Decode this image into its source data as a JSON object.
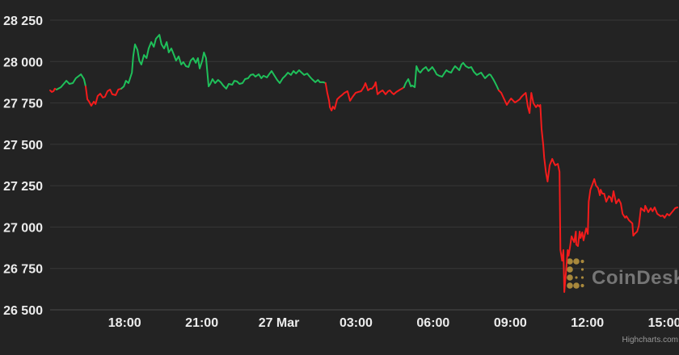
{
  "chart": {
    "watermark": {
      "brand": "CoinDesk"
    },
    "credit": {
      "text": "Highcharts.com"
    }
  },
  "chart_data": {
    "type": "line",
    "x_unit": "minutes",
    "xlim": [
      0,
      1464
    ],
    "ylim": [
      26500,
      28250
    ],
    "grid": "horizontal",
    "legend": "none",
    "up_color": "#1fc05a",
    "down_color": "#f31c1c",
    "x_ticks": [
      {
        "pos": 174,
        "label": "18:00"
      },
      {
        "pos": 354,
        "label": "21:00"
      },
      {
        "pos": 534,
        "label": "27 Mar"
      },
      {
        "pos": 714,
        "label": "03:00"
      },
      {
        "pos": 894,
        "label": "06:00"
      },
      {
        "pos": 1074,
        "label": "09:00"
      },
      {
        "pos": 1254,
        "label": "12:00"
      },
      {
        "pos": 1434,
        "label": "15:00"
      }
    ],
    "y_ticks": [
      {
        "value": 28250,
        "label": "28 250"
      },
      {
        "value": 28000,
        "label": "28 000"
      },
      {
        "value": 27750,
        "label": "27 750"
      },
      {
        "value": 27500,
        "label": "27 500"
      },
      {
        "value": 27250,
        "label": "27 250"
      },
      {
        "value": 27000,
        "label": "27 000"
      },
      {
        "value": 26750,
        "label": "26 750"
      },
      {
        "value": 26500,
        "label": "26 500"
      }
    ],
    "segments": [
      {
        "trend": "down",
        "points": [
          [
            0,
            27826
          ],
          [
            4,
            27816
          ],
          [
            8,
            27821
          ],
          [
            11,
            27836
          ],
          [
            15,
            27831
          ]
        ]
      },
      {
        "trend": "up",
        "points": [
          [
            15,
            27831
          ],
          [
            25,
            27845
          ],
          [
            38,
            27884
          ],
          [
            45,
            27865
          ],
          [
            53,
            27870
          ],
          [
            60,
            27899
          ],
          [
            72,
            27923
          ],
          [
            79,
            27894
          ],
          [
            83,
            27850
          ]
        ]
      },
      {
        "trend": "down",
        "points": [
          [
            83,
            27850
          ],
          [
            87,
            27772
          ],
          [
            91,
            27758
          ],
          [
            96,
            27733
          ],
          [
            102,
            27758
          ],
          [
            106,
            27743
          ],
          [
            111,
            27792
          ],
          [
            117,
            27806
          ],
          [
            123,
            27782
          ],
          [
            128,
            27787
          ],
          [
            134,
            27821
          ],
          [
            140,
            27831
          ],
          [
            145,
            27802
          ],
          [
            153,
            27797
          ],
          [
            159,
            27831
          ],
          [
            166,
            27836
          ]
        ]
      },
      {
        "trend": "up",
        "points": [
          [
            166,
            27836
          ],
          [
            172,
            27850
          ],
          [
            177,
            27884
          ],
          [
            183,
            27870
          ],
          [
            191,
            27933
          ],
          [
            194,
            28031
          ],
          [
            198,
            28104
          ],
          [
            204,
            28070
          ],
          [
            208,
            28006
          ],
          [
            213,
            27982
          ],
          [
            219,
            28040
          ],
          [
            225,
            28021
          ],
          [
            230,
            28079
          ],
          [
            236,
            28118
          ],
          [
            242,
            28089
          ],
          [
            247,
            28138
          ],
          [
            255,
            28162
          ],
          [
            260,
            28104
          ],
          [
            266,
            28079
          ],
          [
            272,
            28118
          ],
          [
            277,
            28055
          ],
          [
            283,
            28079
          ],
          [
            289,
            28040
          ],
          [
            294,
            28006
          ],
          [
            300,
            28031
          ],
          [
            306,
            27982
          ],
          [
            311,
            27997
          ],
          [
            317,
            27972
          ],
          [
            323,
            27967
          ],
          [
            328,
            28006
          ],
          [
            334,
            28021
          ],
          [
            340,
            27992
          ],
          [
            345,
            28021
          ],
          [
            349,
            27958
          ],
          [
            355,
            28006
          ],
          [
            359,
            28055
          ],
          [
            364,
            28021
          ],
          [
            370,
            27850
          ],
          [
            374,
            27865
          ],
          [
            379,
            27894
          ],
          [
            385,
            27870
          ],
          [
            392,
            27889
          ],
          [
            398,
            27875
          ],
          [
            404,
            27855
          ],
          [
            411,
            27836
          ],
          [
            417,
            27865
          ],
          [
            425,
            27860
          ],
          [
            430,
            27884
          ],
          [
            436,
            27880
          ],
          [
            442,
            27865
          ],
          [
            449,
            27870
          ],
          [
            455,
            27894
          ],
          [
            462,
            27899
          ],
          [
            468,
            27919
          ],
          [
            474,
            27923
          ],
          [
            479,
            27909
          ],
          [
            487,
            27923
          ],
          [
            493,
            27899
          ],
          [
            498,
            27914
          ],
          [
            506,
            27904
          ],
          [
            511,
            27923
          ],
          [
            517,
            27943
          ],
          [
            525,
            27909
          ],
          [
            530,
            27889
          ],
          [
            536,
            27870
          ],
          [
            543,
            27899
          ],
          [
            549,
            27914
          ],
          [
            555,
            27933
          ],
          [
            562,
            27919
          ],
          [
            568,
            27943
          ],
          [
            574,
            27928
          ],
          [
            581,
            27948
          ],
          [
            587,
            27933
          ],
          [
            593,
            27919
          ],
          [
            600,
            27928
          ],
          [
            606,
            27909
          ],
          [
            611,
            27894
          ],
          [
            619,
            27875
          ],
          [
            625,
            27889
          ],
          [
            630,
            27875
          ],
          [
            638,
            27875
          ],
          [
            643,
            27870
          ]
        ]
      },
      {
        "trend": "down",
        "points": [
          [
            643,
            27870
          ],
          [
            647,
            27811
          ],
          [
            651,
            27763
          ],
          [
            653,
            27724
          ],
          [
            657,
            27704
          ],
          [
            660,
            27728
          ],
          [
            664,
            27714
          ],
          [
            670,
            27772
          ],
          [
            676,
            27787
          ],
          [
            681,
            27797
          ],
          [
            687,
            27811
          ],
          [
            694,
            27821
          ],
          [
            700,
            27763
          ],
          [
            706,
            27787
          ],
          [
            713,
            27811
          ],
          [
            719,
            27816
          ],
          [
            726,
            27821
          ],
          [
            732,
            27845
          ],
          [
            736,
            27870
          ],
          [
            742,
            27826
          ],
          [
            747,
            27836
          ],
          [
            751,
            27836
          ],
          [
            757,
            27855
          ],
          [
            760,
            27875
          ],
          [
            764,
            27802
          ],
          [
            770,
            27816
          ],
          [
            776,
            27826
          ],
          [
            783,
            27802
          ],
          [
            789,
            27821
          ],
          [
            793,
            27826
          ],
          [
            798,
            27811
          ],
          [
            802,
            27802
          ],
          [
            808,
            27816
          ],
          [
            811,
            27821
          ],
          [
            817,
            27831
          ],
          [
            821,
            27836
          ],
          [
            826,
            27845
          ]
        ]
      },
      {
        "trend": "up",
        "points": [
          [
            826,
            27845
          ],
          [
            830,
            27870
          ],
          [
            836,
            27894
          ],
          [
            842,
            27850
          ],
          [
            845,
            27855
          ],
          [
            851,
            27845
          ],
          [
            855,
            27972
          ],
          [
            860,
            27943
          ],
          [
            864,
            27933
          ],
          [
            870,
            27953
          ],
          [
            877,
            27967
          ],
          [
            883,
            27943
          ],
          [
            889,
            27958
          ],
          [
            892,
            27967
          ],
          [
            898,
            27943
          ],
          [
            902,
            27923
          ],
          [
            908,
            27914
          ],
          [
            915,
            27909
          ],
          [
            921,
            27933
          ],
          [
            925,
            27948
          ],
          [
            930,
            27938
          ],
          [
            936,
            27933
          ],
          [
            940,
            27953
          ],
          [
            945,
            27972
          ],
          [
            951,
            27958
          ],
          [
            955,
            27948
          ],
          [
            960,
            27982
          ],
          [
            964,
            27992
          ],
          [
            970,
            27972
          ],
          [
            977,
            27962
          ],
          [
            983,
            27967
          ],
          [
            989,
            27938
          ],
          [
            996,
            27919
          ],
          [
            1002,
            27928
          ],
          [
            1006,
            27933
          ],
          [
            1011,
            27914
          ],
          [
            1015,
            27899
          ],
          [
            1021,
            27914
          ],
          [
            1025,
            27923
          ],
          [
            1028,
            27919
          ],
          [
            1034,
            27894
          ],
          [
            1038,
            27875
          ],
          [
            1043,
            27850
          ],
          [
            1047,
            27826
          ]
        ]
      },
      {
        "trend": "down",
        "points": [
          [
            1047,
            27826
          ],
          [
            1053,
            27811
          ],
          [
            1059,
            27777
          ],
          [
            1066,
            27738
          ],
          [
            1072,
            27763
          ],
          [
            1076,
            27777
          ],
          [
            1081,
            27763
          ],
          [
            1085,
            27753
          ],
          [
            1091,
            27763
          ],
          [
            1096,
            27772
          ],
          [
            1100,
            27787
          ],
          [
            1104,
            27797
          ],
          [
            1110,
            27811
          ],
          [
            1115,
            27728
          ],
          [
            1119,
            27689
          ],
          [
            1123,
            27811
          ],
          [
            1128,
            27748
          ],
          [
            1134,
            27724
          ],
          [
            1138,
            27738
          ],
          [
            1142,
            27728
          ],
          [
            1144,
            27738
          ],
          [
            1147,
            27592
          ],
          [
            1151,
            27494
          ],
          [
            1153,
            27421
          ],
          [
            1157,
            27334
          ],
          [
            1161,
            27275
          ],
          [
            1166,
            27373
          ],
          [
            1172,
            27412
          ],
          [
            1176,
            27387
          ],
          [
            1179,
            27373
          ],
          [
            1185,
            27382
          ],
          [
            1189,
            27334
          ],
          [
            1191,
            26861
          ],
          [
            1195,
            26797
          ],
          [
            1198,
            26861
          ],
          [
            1200,
            26607
          ],
          [
            1204,
            26729
          ],
          [
            1208,
            26861
          ],
          [
            1210,
            26827
          ],
          [
            1213,
            26875
          ],
          [
            1217,
            26944
          ],
          [
            1223,
            26909
          ],
          [
            1227,
            26973
          ],
          [
            1228,
            26895
          ],
          [
            1232,
            26885
          ],
          [
            1236,
            26973
          ],
          [
            1238,
            26934
          ],
          [
            1242,
            26968
          ],
          [
            1245,
            26919
          ],
          [
            1247,
            26944
          ],
          [
            1251,
            26992
          ],
          [
            1255,
            26958
          ],
          [
            1257,
            27153
          ],
          [
            1261,
            27226
          ],
          [
            1266,
            27260
          ],
          [
            1270,
            27290
          ],
          [
            1274,
            27251
          ],
          [
            1279,
            27236
          ],
          [
            1283,
            27192
          ],
          [
            1285,
            27226
          ],
          [
            1289,
            27202
          ],
          [
            1293,
            27202
          ],
          [
            1298,
            27153
          ],
          [
            1304,
            27187
          ],
          [
            1308,
            27178
          ],
          [
            1311,
            27153
          ],
          [
            1315,
            27217
          ],
          [
            1321,
            27143
          ],
          [
            1327,
            27168
          ],
          [
            1332,
            27143
          ],
          [
            1336,
            27080
          ],
          [
            1342,
            27056
          ],
          [
            1345,
            27066
          ],
          [
            1351,
            27041
          ],
          [
            1359,
            27022
          ],
          [
            1361,
            26948
          ],
          [
            1364,
            26958
          ],
          [
            1370,
            26973
          ],
          [
            1374,
            27007
          ],
          [
            1379,
            27114
          ],
          [
            1387,
            27095
          ],
          [
            1389,
            27129
          ],
          [
            1396,
            27090
          ],
          [
            1402,
            27114
          ],
          [
            1406,
            27095
          ],
          [
            1411,
            27119
          ],
          [
            1417,
            27080
          ],
          [
            1425,
            27066
          ],
          [
            1430,
            27070
          ],
          [
            1434,
            27056
          ],
          [
            1440,
            27080
          ],
          [
            1445,
            27070
          ],
          [
            1453,
            27095
          ],
          [
            1459,
            27114
          ],
          [
            1464,
            27119
          ]
        ]
      }
    ]
  }
}
